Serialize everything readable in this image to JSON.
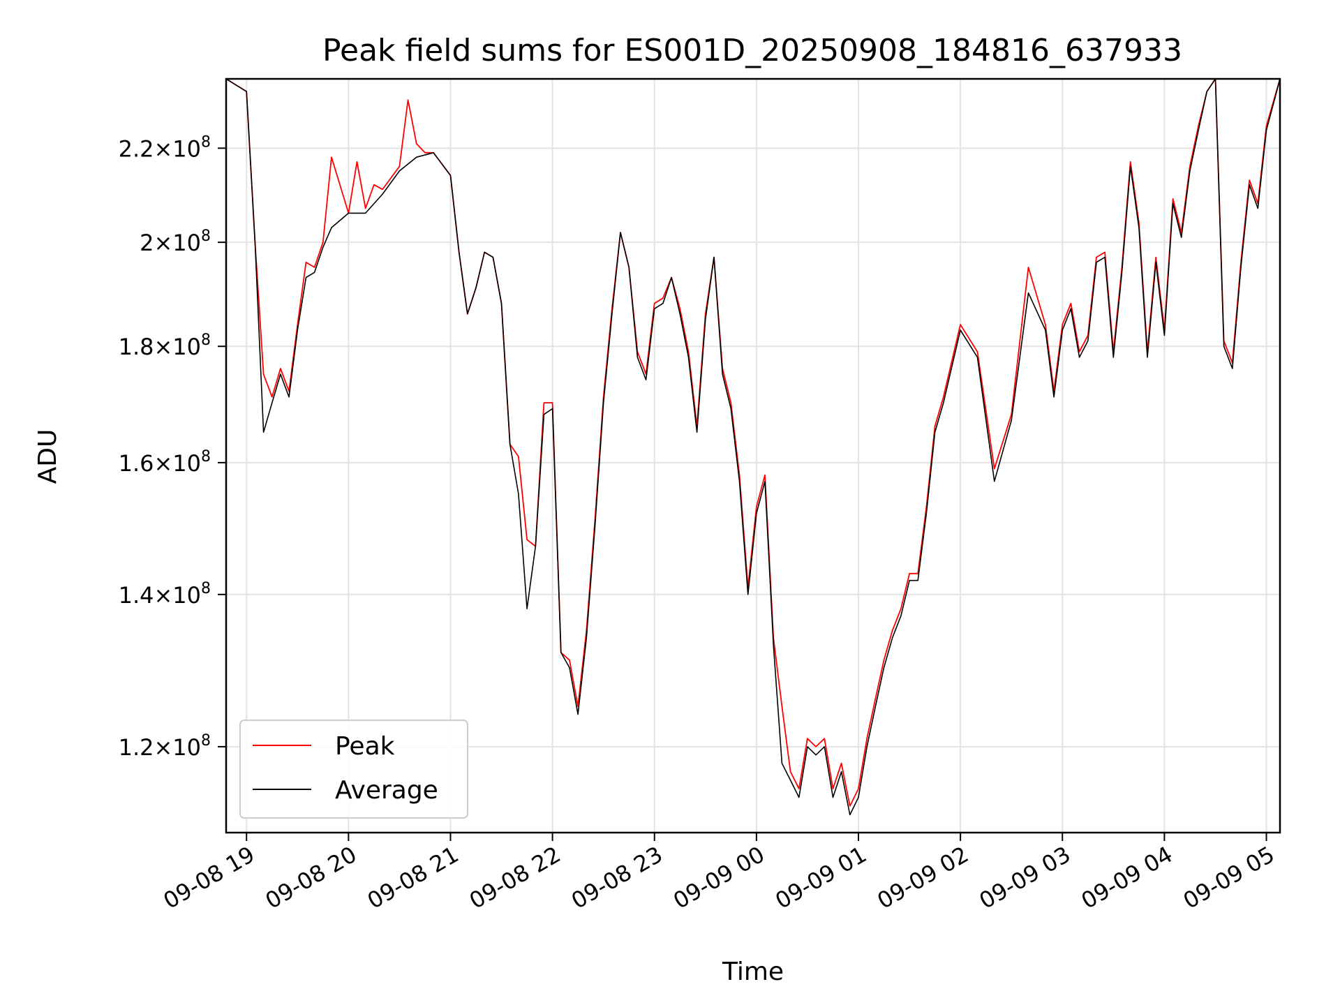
{
  "chart_data": {
    "type": "line",
    "title": "Peak field sums for ES001D_20250908_184816_637933",
    "xlabel": "Time",
    "ylabel": "ADU",
    "x_tick_labels": [
      "09-08 19",
      "09-08 20",
      "09-08 21",
      "09-08 22",
      "09-08 23",
      "09-09 00",
      "09-09 01",
      "09-09 02",
      "09-09 03",
      "09-09 04",
      "09-09 05"
    ],
    "y_tick_labels": [
      {
        "value": 120000000,
        "mantissa": "1.2"
      },
      {
        "value": 140000000,
        "mantissa": "1.4"
      },
      {
        "value": 160000000,
        "mantissa": "1.6"
      },
      {
        "value": 180000000,
        "mantissa": "1.8"
      },
      {
        "value": 200000000,
        "mantissa": "2"
      },
      {
        "value": 220000000,
        "mantissa": "2.2"
      }
    ],
    "y_tick_exponent": "8",
    "y_scale": "log",
    "ylim": [
      110000000,
      236000000
    ],
    "xlim": [
      "2025-09-08 18:48",
      "2025-09-09 05:08"
    ],
    "grid": true,
    "legend_position": "lower-left",
    "colors": {
      "peak": "#ff0000",
      "average": "#000000"
    },
    "series": [
      {
        "name": "Average",
        "x": [
          "2025-09-08 18:48",
          "2025-09-08 19:00",
          "2025-09-08 19:05",
          "2025-09-08 19:10",
          "2025-09-08 19:15",
          "2025-09-08 19:20",
          "2025-09-08 19:25",
          "2025-09-08 19:30",
          "2025-09-08 19:35",
          "2025-09-08 19:40",
          "2025-09-08 19:45",
          "2025-09-08 19:50",
          "2025-09-08 20:00",
          "2025-09-08 20:10",
          "2025-09-08 20:20",
          "2025-09-08 20:30",
          "2025-09-08 20:40",
          "2025-09-08 20:50",
          "2025-09-08 21:00",
          "2025-09-08 21:05",
          "2025-09-08 21:10",
          "2025-09-08 21:15",
          "2025-09-08 21:20",
          "2025-09-08 21:25",
          "2025-09-08 21:30",
          "2025-09-08 21:35",
          "2025-09-08 21:40",
          "2025-09-08 21:45",
          "2025-09-08 21:50",
          "2025-09-08 21:55",
          "2025-09-08 22:00",
          "2025-09-08 22:05",
          "2025-09-08 22:10",
          "2025-09-08 22:15",
          "2025-09-08 22:20",
          "2025-09-08 22:25",
          "2025-09-08 22:30",
          "2025-09-08 22:35",
          "2025-09-08 22:40",
          "2025-09-08 22:45",
          "2025-09-08 22:50",
          "2025-09-08 22:55",
          "2025-09-08 23:00",
          "2025-09-08 23:05",
          "2025-09-08 23:10",
          "2025-09-08 23:15",
          "2025-09-08 23:20",
          "2025-09-08 23:25",
          "2025-09-08 23:30",
          "2025-09-08 23:35",
          "2025-09-08 23:40",
          "2025-09-08 23:45",
          "2025-09-08 23:50",
          "2025-09-08 23:55",
          "2025-09-09 00:00",
          "2025-09-09 00:05",
          "2025-09-09 00:10",
          "2025-09-09 00:15",
          "2025-09-09 00:20",
          "2025-09-09 00:25",
          "2025-09-09 00:30",
          "2025-09-09 00:35",
          "2025-09-09 00:40",
          "2025-09-09 00:45",
          "2025-09-09 00:50",
          "2025-09-09 00:55",
          "2025-09-09 01:00",
          "2025-09-09 01:05",
          "2025-09-09 01:10",
          "2025-09-09 01:15",
          "2025-09-09 01:20",
          "2025-09-09 01:25",
          "2025-09-09 01:30",
          "2025-09-09 01:35",
          "2025-09-09 01:40",
          "2025-09-09 01:45",
          "2025-09-09 01:50",
          "2025-09-09 02:00",
          "2025-09-09 02:10",
          "2025-09-09 02:20",
          "2025-09-09 02:30",
          "2025-09-09 02:40",
          "2025-09-09 02:50",
          "2025-09-09 02:55",
          "2025-09-09 03:00",
          "2025-09-09 03:05",
          "2025-09-09 03:10",
          "2025-09-09 03:15",
          "2025-09-09 03:20",
          "2025-09-09 03:25",
          "2025-09-09 03:30",
          "2025-09-09 03:35",
          "2025-09-09 03:40",
          "2025-09-09 03:45",
          "2025-09-09 03:50",
          "2025-09-09 03:55",
          "2025-09-09 04:00",
          "2025-09-09 04:05",
          "2025-09-09 04:10",
          "2025-09-09 04:15",
          "2025-09-09 04:20",
          "2025-09-09 04:25",
          "2025-09-09 04:30",
          "2025-09-09 04:35",
          "2025-09-09 04:40",
          "2025-09-09 04:45",
          "2025-09-09 04:50",
          "2025-09-09 04:55",
          "2025-09-09 05:00",
          "2025-09-09 05:08"
        ],
        "y": [
          236000000,
          233000000,
          200000000,
          165000000,
          170000000,
          175000000,
          171000000,
          183000000,
          193000000,
          194000000,
          199000000,
          203000000,
          206000000,
          206000000,
          210000000,
          215000000,
          218000000,
          219000000,
          214000000,
          198000000,
          186000000,
          191000000,
          198000000,
          197000000,
          188000000,
          163000000,
          155000000,
          138000000,
          147000000,
          168000000,
          169000000,
          132000000,
          130000000,
          124000000,
          134000000,
          150000000,
          170000000,
          186000000,
          202000000,
          195000000,
          178000000,
          174000000,
          187000000,
          188000000,
          193000000,
          186000000,
          178000000,
          165000000,
          185000000,
          197000000,
          175000000,
          169000000,
          157000000,
          140000000,
          152000000,
          157000000,
          133000000,
          118000000,
          116000000,
          114000000,
          120000000,
          119000000,
          120000000,
          114000000,
          117000000,
          112000000,
          114000000,
          120000000,
          125000000,
          130000000,
          134000000,
          137000000,
          142000000,
          142000000,
          152000000,
          165000000,
          170000000,
          183000000,
          178000000,
          157000000,
          167000000,
          190000000,
          183000000,
          171000000,
          183000000,
          187000000,
          178000000,
          181000000,
          196000000,
          197000000,
          178000000,
          194000000,
          216000000,
          203000000,
          178000000,
          196000000,
          182000000,
          208000000,
          201000000,
          215000000,
          224000000,
          233000000,
          236000000,
          180000000,
          176000000,
          195000000,
          212000000,
          207000000,
          224000000,
          236000000
        ]
      },
      {
        "name": "Peak",
        "x": [
          "2025-09-08 18:48",
          "2025-09-08 19:00",
          "2025-09-08 19:05",
          "2025-09-08 19:10",
          "2025-09-08 19:15",
          "2025-09-08 19:20",
          "2025-09-08 19:25",
          "2025-09-08 19:30",
          "2025-09-08 19:35",
          "2025-09-08 19:40",
          "2025-09-08 19:45",
          "2025-09-08 19:50",
          "2025-09-08 20:00",
          "2025-09-08 20:05",
          "2025-09-08 20:10",
          "2025-09-08 20:15",
          "2025-09-08 20:20",
          "2025-09-08 20:30",
          "2025-09-08 20:35",
          "2025-09-08 20:40",
          "2025-09-08 20:45",
          "2025-09-08 20:50",
          "2025-09-08 21:00",
          "2025-09-08 21:05",
          "2025-09-08 21:10",
          "2025-09-08 21:15",
          "2025-09-08 21:20",
          "2025-09-08 21:25",
          "2025-09-08 21:30",
          "2025-09-08 21:35",
          "2025-09-08 21:40",
          "2025-09-08 21:45",
          "2025-09-08 21:50",
          "2025-09-08 21:55",
          "2025-09-08 22:00",
          "2025-09-08 22:05",
          "2025-09-08 22:10",
          "2025-09-08 22:15",
          "2025-09-08 22:20",
          "2025-09-08 22:25",
          "2025-09-08 22:30",
          "2025-09-08 22:35",
          "2025-09-08 22:40",
          "2025-09-08 22:45",
          "2025-09-08 22:50",
          "2025-09-08 22:55",
          "2025-09-08 23:00",
          "2025-09-08 23:05",
          "2025-09-08 23:10",
          "2025-09-08 23:15",
          "2025-09-08 23:20",
          "2025-09-08 23:25",
          "2025-09-08 23:30",
          "2025-09-08 23:35",
          "2025-09-08 23:40",
          "2025-09-08 23:45",
          "2025-09-08 23:50",
          "2025-09-08 23:55",
          "2025-09-09 00:00",
          "2025-09-09 00:05",
          "2025-09-09 00:10",
          "2025-09-09 00:15",
          "2025-09-09 00:20",
          "2025-09-09 00:25",
          "2025-09-09 00:30",
          "2025-09-09 00:35",
          "2025-09-09 00:40",
          "2025-09-09 00:45",
          "2025-09-09 00:50",
          "2025-09-09 00:55",
          "2025-09-09 01:00",
          "2025-09-09 01:05",
          "2025-09-09 01:10",
          "2025-09-09 01:15",
          "2025-09-09 01:20",
          "2025-09-09 01:25",
          "2025-09-09 01:30",
          "2025-09-09 01:35",
          "2025-09-09 01:40",
          "2025-09-09 01:45",
          "2025-09-09 01:50",
          "2025-09-09 02:00",
          "2025-09-09 02:10",
          "2025-09-09 02:20",
          "2025-09-09 02:30",
          "2025-09-09 02:40",
          "2025-09-09 02:50",
          "2025-09-09 02:55",
          "2025-09-09 03:00",
          "2025-09-09 03:05",
          "2025-09-09 03:10",
          "2025-09-09 03:15",
          "2025-09-09 03:20",
          "2025-09-09 03:25",
          "2025-09-09 03:30",
          "2025-09-09 03:35",
          "2025-09-09 03:40",
          "2025-09-09 03:45",
          "2025-09-09 03:50",
          "2025-09-09 03:55",
          "2025-09-09 04:00",
          "2025-09-09 04:05",
          "2025-09-09 04:10",
          "2025-09-09 04:15",
          "2025-09-09 04:20",
          "2025-09-09 04:25",
          "2025-09-09 04:30",
          "2025-09-09 04:35",
          "2025-09-09 04:40",
          "2025-09-09 04:45",
          "2025-09-09 04:50",
          "2025-09-09 04:55",
          "2025-09-09 05:00",
          "2025-09-09 05:08"
        ],
        "y": [
          236000000,
          233000000,
          200000000,
          175000000,
          171000000,
          176000000,
          172000000,
          184000000,
          196000000,
          195000000,
          200000000,
          218000000,
          206000000,
          217000000,
          207000000,
          212000000,
          211000000,
          216000000,
          231000000,
          221000000,
          219000000,
          219000000,
          214000000,
          198000000,
          186000000,
          191000000,
          198000000,
          197000000,
          188000000,
          163000000,
          161000000,
          148000000,
          147000000,
          170000000,
          170000000,
          132000000,
          131000000,
          125000000,
          135000000,
          151000000,
          171000000,
          187000000,
          202000000,
          195000000,
          179000000,
          175000000,
          188000000,
          189000000,
          193000000,
          187000000,
          179000000,
          166000000,
          186000000,
          197000000,
          176000000,
          170000000,
          158000000,
          141000000,
          153000000,
          158000000,
          134000000,
          125000000,
          117000000,
          115000000,
          121000000,
          120000000,
          121000000,
          115000000,
          118000000,
          113000000,
          115000000,
          121000000,
          126000000,
          131000000,
          135000000,
          138000000,
          143000000,
          143000000,
          153000000,
          166000000,
          171000000,
          184000000,
          179000000,
          159000000,
          168000000,
          195000000,
          184000000,
          172000000,
          184000000,
          188000000,
          179000000,
          182000000,
          197000000,
          198000000,
          179000000,
          195000000,
          217000000,
          204000000,
          179000000,
          197000000,
          183000000,
          209000000,
          202000000,
          216000000,
          225000000,
          233000000,
          236000000,
          181000000,
          177000000,
          196000000,
          213000000,
          208000000,
          225000000,
          236000000
        ]
      }
    ],
    "legend": [
      {
        "name": "Peak",
        "color": "#ff0000"
      },
      {
        "name": "Average",
        "color": "#000000"
      }
    ]
  }
}
